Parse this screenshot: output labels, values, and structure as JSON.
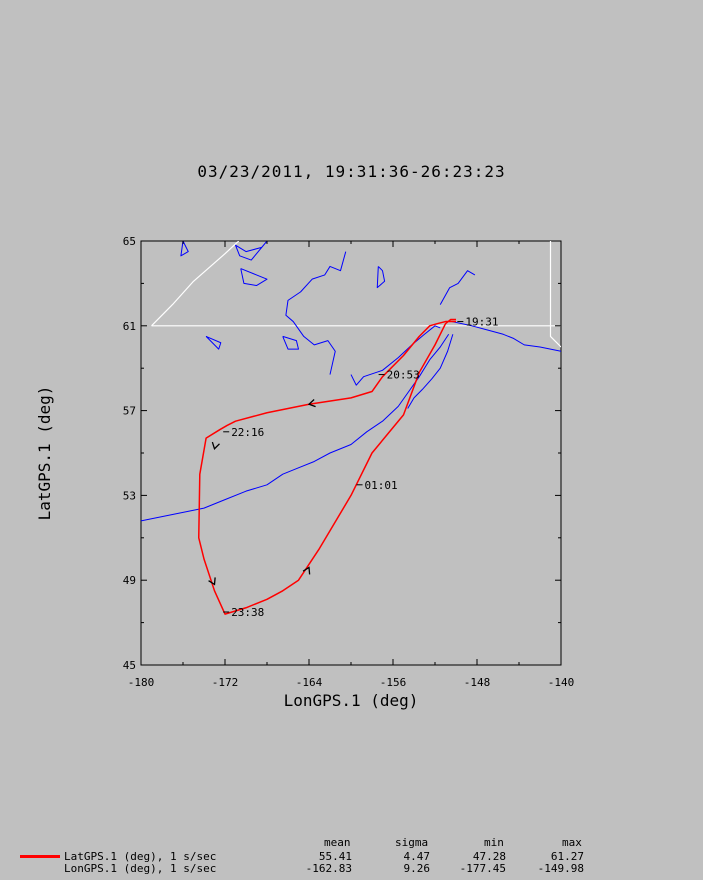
{
  "title": "03/23/2011, 19:31:36-26:23:23",
  "chart_data": {
    "type": "line",
    "xlabel": "LonGPS.1 (deg)",
    "ylabel": "LatGPS.1 (deg)",
    "xlim": [
      -180,
      -140
    ],
    "ylim": [
      45,
      65
    ],
    "xticks": [
      -180,
      -172,
      -164,
      -156,
      -148,
      -140
    ],
    "yticks": [
      45,
      49,
      53,
      57,
      61,
      65
    ],
    "grid": false,
    "colors": {
      "track": "#ff0000",
      "coast": "#0000ff",
      "border": "#ffffff",
      "background": "#c0c0c0",
      "plot_bg": "#c0c0c0"
    },
    "track": {
      "x": [
        -150.0,
        -151.0,
        -151.8,
        -152.5,
        -153.5,
        -155.0,
        -157.0,
        -158.0,
        -160.0,
        -164.0,
        -168.0,
        -171.0,
        -171.8,
        -172.5,
        -173.8,
        -174.4,
        -174.5,
        -174.0,
        -173.0,
        -172.0,
        -170.0,
        -168.0,
        -166.5,
        -165.0,
        -163.0,
        -160.0,
        -158.0,
        -155.0,
        -153.5,
        -152.0,
        -151.3,
        -151.0,
        -150.5,
        -150.0
      ],
      "y": [
        61.2,
        61.2,
        61.1,
        61.0,
        60.5,
        59.6,
        58.6,
        57.9,
        57.6,
        57.3,
        56.9,
        56.5,
        56.3,
        56.1,
        55.7,
        54.0,
        51.0,
        50.0,
        48.5,
        47.4,
        47.7,
        48.1,
        48.5,
        49.0,
        50.5,
        53.0,
        55.0,
        56.8,
        58.8,
        60.1,
        60.8,
        61.1,
        61.3,
        61.3
      ]
    },
    "time_labels": [
      {
        "text": "19:31",
        "x": -149.3,
        "y": 61.2
      },
      {
        "text": "20:53",
        "x": -156.8,
        "y": 58.7
      },
      {
        "text": "22:16",
        "x": -171.6,
        "y": 56.0
      },
      {
        "text": "01:01",
        "x": -158.9,
        "y": 53.5
      },
      {
        "text": "23:38",
        "x": -171.6,
        "y": 47.5
      }
    ],
    "direction_arrows": [
      {
        "x": -164.0,
        "y": 57.3,
        "toward": [
          -166.0,
          57.1
        ]
      },
      {
        "x": -173.0,
        "y": 55.2,
        "toward": [
          -173.2,
          54.8
        ]
      },
      {
        "x": -173.0,
        "y": 48.8,
        "toward": [
          -172.7,
          48.5
        ]
      },
      {
        "x": -164.0,
        "y": 49.6,
        "toward": [
          -163.6,
          50.0
        ]
      }
    ],
    "coast_segments": [
      {
        "x": [
          -180.0,
          -178.0,
          -176.0,
          -174.0,
          -172.0,
          -170.0,
          -168.0,
          -166.5,
          -165.0,
          -163.5,
          -162.0,
          -160.0,
          -158.5,
          -157.0,
          -155.5,
          -154.5,
          -153.5,
          -152.5,
          -151.5,
          -150.7
        ],
        "y": [
          51.8,
          52.0,
          52.2,
          52.4,
          52.8,
          53.2,
          53.5,
          54.0,
          54.3,
          54.6,
          55.0,
          55.4,
          56.0,
          56.5,
          57.2,
          57.9,
          58.6,
          59.4,
          60.0,
          60.6
        ]
      },
      {
        "x": [
          -151.5,
          -152.0,
          -153.0,
          -154.2,
          -155.5,
          -157.0,
          -158.8,
          -159.5,
          -160.0
        ],
        "y": [
          60.9,
          61.0,
          60.6,
          60.1,
          59.5,
          58.9,
          58.6,
          58.2,
          58.7
        ]
      },
      {
        "x": [
          -150.3,
          -150.8,
          -151.5,
          -152.3,
          -153.2,
          -154.0,
          -154.6
        ],
        "y": [
          60.6,
          59.8,
          59.0,
          58.5,
          58.0,
          57.6,
          57.1
        ]
      },
      {
        "x": [
          -162.0,
          -161.5,
          -162.2,
          -163.5,
          -164.5,
          -165.5,
          -166.2,
          -166.0,
          -164.8,
          -163.7,
          -162.5,
          -162.0,
          -161.0,
          -160.5
        ],
        "y": [
          58.7,
          59.8,
          60.3,
          60.1,
          60.5,
          61.2,
          61.5,
          62.2,
          62.6,
          63.2,
          63.4,
          63.8,
          63.6,
          64.5
        ]
      },
      {
        "x": [
          -150.4,
          -148.5,
          -147.0,
          -145.5,
          -144.5,
          -143.5,
          -142.0,
          -141.0,
          -140.0
        ],
        "y": [
          61.2,
          61.0,
          60.8,
          60.6,
          60.4,
          60.1,
          60.0,
          59.9,
          59.8
        ]
      },
      {
        "x": [
          -168.0,
          -168.5,
          -170.0,
          -171.0,
          -170.6,
          -169.5,
          -168.0
        ],
        "y": [
          65.0,
          64.7,
          64.5,
          64.8,
          64.3,
          64.1,
          65.0
        ]
      },
      {
        "x": [
          -170.5,
          -169.0,
          -168.0,
          -169.0,
          -170.2,
          -170.5
        ],
        "y": [
          63.7,
          63.4,
          63.2,
          62.9,
          63.0,
          63.7
        ]
      },
      {
        "x": [
          -166.5,
          -165.2,
          -165.0,
          -166.0,
          -166.5
        ],
        "y": [
          60.5,
          60.3,
          59.9,
          59.9,
          60.5
        ]
      },
      {
        "x": [
          -173.8,
          -172.4,
          -172.6,
          -173.8
        ],
        "y": [
          60.5,
          60.2,
          59.9,
          60.5
        ]
      },
      {
        "x": [
          -176.0,
          -175.5,
          -176.2,
          -176.0
        ],
        "y": [
          65.0,
          64.5,
          64.3,
          65.0
        ]
      },
      {
        "x": [
          -151.5,
          -150.6,
          -149.8,
          -148.9,
          -148.2
        ],
        "y": [
          62.0,
          62.8,
          63.0,
          63.6,
          63.4
        ]
      },
      {
        "x": [
          -157.4,
          -157.0,
          -156.8,
          -157.5,
          -157.4
        ],
        "y": [
          63.8,
          63.6,
          63.1,
          62.8,
          63.8
        ]
      }
    ],
    "border_segments": [
      {
        "x": [
          -179.0,
          -177.0,
          -175.0,
          -172.0,
          -170.7
        ],
        "y": [
          61.0,
          62.0,
          63.1,
          64.4,
          65.0
        ]
      },
      {
        "x": [
          -179.0,
          -140.0
        ],
        "y": [
          61.0,
          61.0
        ]
      },
      {
        "x": [
          -141.0,
          -141.0,
          -140.0
        ],
        "y": [
          65.0,
          60.5,
          60.0
        ]
      }
    ]
  },
  "stats": {
    "headers": [
      "mean",
      "sigma",
      "min",
      "max"
    ],
    "rows": [
      {
        "label": "LatGPS.1 (deg), 1 s/sec",
        "values": [
          "55.41",
          "4.47",
          "47.28",
          "61.27"
        ],
        "swatch": true,
        "color": "#ff0000"
      },
      {
        "label": "LonGPS.1 (deg), 1 s/sec",
        "values": [
          "-162.83",
          "9.26",
          "-177.45",
          "-149.98"
        ],
        "swatch": false,
        "color": ""
      }
    ]
  }
}
